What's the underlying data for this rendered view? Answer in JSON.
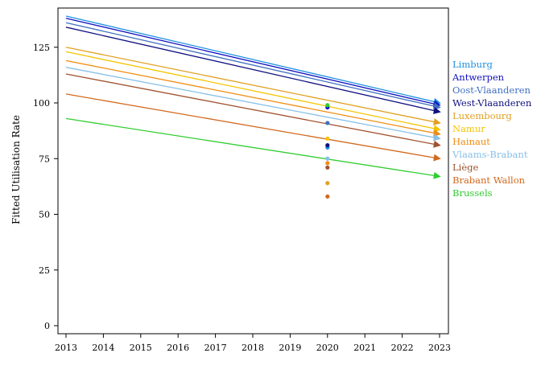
{
  "chart_data": {
    "type": "line",
    "title": "",
    "xlabel": "",
    "ylabel": "Fitted Utilisation Rate",
    "xlim": [
      2013,
      2023
    ],
    "ylim": [
      0,
      140
    ],
    "x_ticks": [
      2013,
      2014,
      2015,
      2016,
      2017,
      2018,
      2019,
      2020,
      2021,
      2022,
      2023
    ],
    "y_ticks": [
      0,
      25,
      50,
      75,
      100,
      125
    ],
    "legend_position": "right",
    "series": [
      {
        "name": "Limburg",
        "color": "#1E90E0",
        "x": [
          2013,
          2023
        ],
        "y": [
          139,
          100
        ],
        "observed": {
          "x": 2020,
          "y": 80
        }
      },
      {
        "name": "Antwerpen",
        "color": "#1010C0",
        "x": [
          2013,
          2023
        ],
        "y": [
          138,
          99
        ],
        "observed": {
          "x": 2020,
          "y": 98
        }
      },
      {
        "name": "Oost-Vlaanderen",
        "color": "#4070C0",
        "x": [
          2013,
          2023
        ],
        "y": [
          136,
          98
        ],
        "observed": {
          "x": 2020,
          "y": 91
        }
      },
      {
        "name": "West-Vlaanderen",
        "color": "#101080",
        "x": [
          2013,
          2023
        ],
        "y": [
          134,
          96
        ],
        "observed": {
          "x": 2020,
          "y": 81
        }
      },
      {
        "name": "Luxembourg",
        "color": "#E0A020",
        "x": [
          2013,
          2023
        ],
        "y": [
          125,
          91
        ],
        "observed": {
          "x": 2020,
          "y": 64
        }
      },
      {
        "name": "Namur",
        "color": "#F5C400",
        "x": [
          2013,
          2023
        ],
        "y": [
          123,
          88
        ],
        "observed": {
          "x": 2020,
          "y": 84
        }
      },
      {
        "name": "Hainaut",
        "color": "#F08C10",
        "x": [
          2013,
          2023
        ],
        "y": [
          119,
          86
        ],
        "observed": {
          "x": 2020,
          "y": 73
        }
      },
      {
        "name": "Vlaams-Brabant",
        "color": "#87C0E8",
        "x": [
          2013,
          2023
        ],
        "y": [
          116,
          84
        ],
        "observed": {
          "x": 2020,
          "y": 75
        }
      },
      {
        "name": "Liège",
        "color": "#A0522D",
        "x": [
          2013,
          2023
        ],
        "y": [
          113,
          81
        ],
        "observed": {
          "x": 2020,
          "y": 71
        }
      },
      {
        "name": "Brabant Wallon",
        "color": "#D2691E",
        "x": [
          2013,
          2023
        ],
        "y": [
          104,
          75
        ],
        "observed": {
          "x": 2020,
          "y": 58
        }
      },
      {
        "name": "Brussels",
        "color": "#32CD32",
        "x": [
          2013,
          2023
        ],
        "y": [
          93,
          67
        ],
        "observed": {
          "x": 2020,
          "y": 99
        }
      }
    ]
  }
}
